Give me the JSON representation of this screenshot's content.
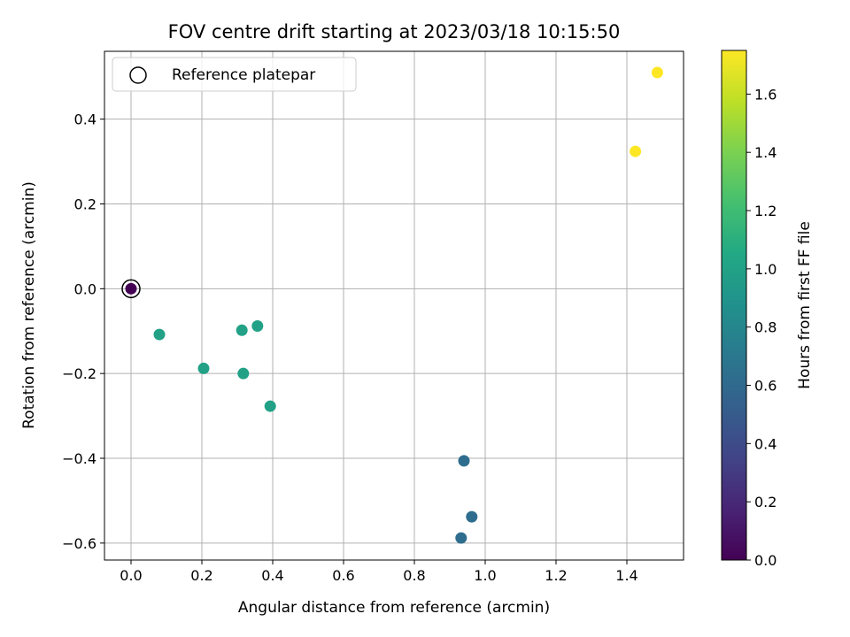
{
  "chart_data": {
    "type": "scatter",
    "title": "FOV centre drift starting at 2023/03/18 10:15:50",
    "xlabel": "Angular distance from reference (arcmin)",
    "ylabel": "Rotation from reference (arcmin)",
    "xlim": [
      -0.075,
      1.56
    ],
    "ylim": [
      -0.64,
      0.56
    ],
    "xticks": [
      0.0,
      0.2,
      0.4,
      0.6,
      0.8,
      1.0,
      1.2,
      1.4
    ],
    "xtick_labels": [
      "0.0",
      "0.2",
      "0.4",
      "0.6",
      "0.8",
      "1.0",
      "1.2",
      "1.4"
    ],
    "yticks": [
      -0.6,
      -0.4,
      -0.2,
      0.0,
      0.2,
      0.4
    ],
    "ytick_labels": [
      "−0.6",
      "−0.4",
      "−0.2",
      "0.0",
      "0.2",
      "0.4"
    ],
    "grid": true,
    "points": [
      {
        "x": 0.0,
        "y": 0.0,
        "hours": 0.0
      },
      {
        "x": 0.08,
        "y": -0.108,
        "hours": 1.0
      },
      {
        "x": 0.205,
        "y": -0.188,
        "hours": 1.0
      },
      {
        "x": 0.313,
        "y": -0.098,
        "hours": 1.0
      },
      {
        "x": 0.317,
        "y": -0.2,
        "hours": 1.0
      },
      {
        "x": 0.357,
        "y": -0.088,
        "hours": 1.0
      },
      {
        "x": 0.393,
        "y": -0.277,
        "hours": 1.0
      },
      {
        "x": 0.94,
        "y": -0.406,
        "hours": 0.62
      },
      {
        "x": 0.962,
        "y": -0.538,
        "hours": 0.62
      },
      {
        "x": 0.932,
        "y": -0.588,
        "hours": 0.62
      },
      {
        "x": 1.424,
        "y": 0.324,
        "hours": 1.75
      },
      {
        "x": 1.486,
        "y": 0.51,
        "hours": 1.75
      }
    ],
    "reference_point": {
      "x": 0.0,
      "y": 0.0
    },
    "legend": {
      "entries": [
        "Reference platepar"
      ],
      "placement": "upper-left"
    },
    "colorbar": {
      "label": "Hours from first FF file",
      "range": [
        0.0,
        1.75
      ],
      "ticks": [
        0.0,
        0.2,
        0.4,
        0.6,
        0.8,
        1.0,
        1.2,
        1.4,
        1.6
      ],
      "tick_labels": [
        "0.0",
        "0.2",
        "0.4",
        "0.6",
        "0.8",
        "1.0",
        "1.2",
        "1.4",
        "1.6"
      ],
      "colormap": "viridis"
    }
  }
}
